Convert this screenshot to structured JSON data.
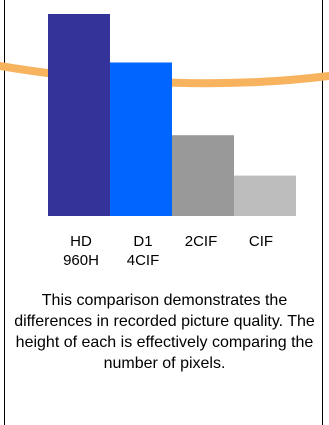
{
  "colors": {
    "background": "#ffffff",
    "border": "#000000",
    "decor_curve": "#f7b35d"
  },
  "chart_data": {
    "type": "bar",
    "title": "",
    "xlabel": "",
    "ylabel": "",
    "categories": [
      "HD\n960H",
      "D1\n4CIF",
      "2CIF",
      "CIF"
    ],
    "values": [
      100,
      76,
      40,
      20
    ],
    "ylim": [
      0,
      100
    ],
    "grid": false,
    "colors": [
      "#343399",
      "#0066ff",
      "#999999",
      "#bdbdbd"
    ]
  },
  "caption": "This comparison demonstrates the differences in recorded picture quality. The height of each is effectively comparing the number of pixels."
}
